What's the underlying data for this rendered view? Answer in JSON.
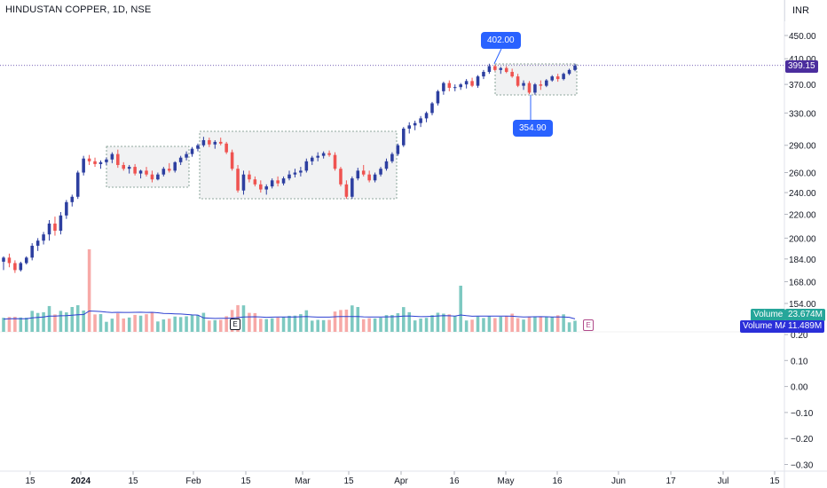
{
  "header": {
    "title": "HINDUSTAN COPPER, 1D, NSE",
    "currency": "INR"
  },
  "price_axis": {
    "ticks": [
      "450.00",
      "410.00",
      "370.00",
      "330.00",
      "290.00",
      "260.00",
      "240.00",
      "220.00",
      "200.00",
      "184.00",
      "168.00",
      "154.00"
    ],
    "last_price": "399.15"
  },
  "volume_axis": {
    "ticks": [
      "0.20",
      "0.10",
      "0.00",
      "−0.10",
      "−0.20",
      "−0.30"
    ]
  },
  "time_axis": {
    "ticks": [
      "15",
      "2024",
      "15",
      "Feb",
      "15",
      "Mar",
      "15",
      "Apr",
      "16",
      "May",
      "16",
      "Jun",
      "17",
      "Jul",
      "15"
    ]
  },
  "badges": {
    "volume_label": "Volume",
    "volume_value": "23.674M",
    "ma_label": "Volume MA",
    "ma_value": "11.489M"
  },
  "annotations": {
    "high": "402.00",
    "low": "354.90"
  },
  "events": {
    "earnings_1": "E",
    "earnings_2": "E"
  },
  "colors": {
    "up": "#26a69a",
    "up_fill": "#2d3fa0",
    "down": "#ef5350",
    "accent": "#2962ff",
    "ma": "#2c3fd1",
    "volume_badge": "#26a69a",
    "ma_badge": "#2b2fd9",
    "last_price_badge": "#4b2d9e"
  },
  "chart_data": {
    "type": "candlestick",
    "title": "",
    "price_scale": "log",
    "visible_price_range": [
      154,
      450
    ],
    "candles": [
      [
        182,
        186,
        176,
        185
      ],
      [
        185,
        188,
        178,
        181
      ],
      [
        181,
        183,
        174,
        176
      ],
      [
        176,
        182,
        175,
        181
      ],
      [
        181,
        186,
        180,
        185
      ],
      [
        185,
        196,
        183,
        194
      ],
      [
        194,
        200,
        190,
        198
      ],
      [
        198,
        205,
        195,
        203
      ],
      [
        203,
        215,
        198,
        212
      ],
      [
        212,
        218,
        202,
        206
      ],
      [
        206,
        222,
        203,
        219
      ],
      [
        219,
        233,
        216,
        231
      ],
      [
        231,
        238,
        227,
        236
      ],
      [
        236,
        262,
        234,
        260
      ],
      [
        260,
        278,
        257,
        275
      ],
      [
        275,
        279,
        268,
        272
      ],
      [
        272,
        276,
        266,
        269
      ],
      [
        269,
        273,
        264,
        271
      ],
      [
        271,
        276,
        268,
        274
      ],
      [
        274,
        282,
        270,
        280
      ],
      [
        280,
        285,
        265,
        268
      ],
      [
        268,
        271,
        262,
        264
      ],
      [
        264,
        268,
        259,
        266
      ],
      [
        266,
        269,
        257,
        259
      ],
      [
        259,
        263,
        254,
        262
      ],
      [
        262,
        266,
        256,
        258
      ],
      [
        258,
        262,
        250,
        253
      ],
      [
        253,
        260,
        252,
        258
      ],
      [
        258,
        266,
        256,
        264
      ],
      [
        264,
        270,
        260,
        262
      ],
      [
        262,
        272,
        260,
        271
      ],
      [
        271,
        278,
        268,
        276
      ],
      [
        276,
        283,
        273,
        280
      ],
      [
        280,
        288,
        277,
        286
      ],
      [
        286,
        292,
        283,
        290
      ],
      [
        290,
        300,
        288,
        296
      ],
      [
        296,
        299,
        288,
        291
      ],
      [
        291,
        296,
        286,
        294
      ],
      [
        294,
        299,
        290,
        292
      ],
      [
        292,
        294,
        280,
        282
      ],
      [
        282,
        285,
        262,
        264
      ],
      [
        264,
        268,
        240,
        242
      ],
      [
        242,
        262,
        238,
        258
      ],
      [
        258,
        262,
        250,
        253
      ],
      [
        253,
        256,
        246,
        248
      ],
      [
        248,
        252,
        240,
        243
      ],
      [
        243,
        248,
        238,
        246
      ],
      [
        246,
        254,
        244,
        252
      ],
      [
        252,
        256,
        246,
        249
      ],
      [
        249,
        256,
        247,
        254
      ],
      [
        254,
        262,
        252,
        258
      ],
      [
        258,
        264,
        255,
        260
      ],
      [
        260,
        266,
        256,
        262
      ],
      [
        262,
        275,
        260,
        272
      ],
      [
        272,
        278,
        268,
        276
      ],
      [
        276,
        282,
        272,
        278
      ],
      [
        278,
        283,
        275,
        281
      ],
      [
        281,
        284,
        277,
        279
      ],
      [
        279,
        282,
        262,
        264
      ],
      [
        264,
        266,
        246,
        248
      ],
      [
        248,
        252,
        234,
        236
      ],
      [
        236,
        256,
        234,
        254
      ],
      [
        254,
        265,
        252,
        262
      ],
      [
        262,
        268,
        256,
        258
      ],
      [
        258,
        262,
        250,
        252
      ],
      [
        252,
        260,
        250,
        258
      ],
      [
        258,
        266,
        256,
        264
      ],
      [
        264,
        275,
        262,
        272
      ],
      [
        272,
        282,
        270,
        280
      ],
      [
        280,
        292,
        278,
        290
      ],
      [
        290,
        312,
        288,
        310
      ],
      [
        310,
        318,
        304,
        314
      ],
      [
        314,
        320,
        308,
        317
      ],
      [
        317,
        326,
        312,
        323
      ],
      [
        323,
        332,
        318,
        330
      ],
      [
        330,
        345,
        327,
        343
      ],
      [
        343,
        362,
        340,
        360
      ],
      [
        360,
        374,
        355,
        372
      ],
      [
        372,
        376,
        360,
        365
      ],
      [
        365,
        370,
        360,
        366
      ],
      [
        366,
        372,
        362,
        370
      ],
      [
        370,
        378,
        364,
        375
      ],
      [
        375,
        380,
        366,
        368
      ],
      [
        368,
        384,
        365,
        382
      ],
      [
        382,
        392,
        378,
        389
      ],
      [
        389,
        402,
        386,
        398
      ],
      [
        398,
        400,
        390,
        392
      ],
      [
        392,
        397,
        386,
        395
      ],
      [
        395,
        398,
        387,
        389
      ],
      [
        389,
        394,
        380,
        382
      ],
      [
        382,
        386,
        366,
        368
      ],
      [
        368,
        376,
        362,
        372
      ],
      [
        372,
        375,
        356,
        358
      ],
      [
        358,
        372,
        355,
        370
      ],
      [
        370,
        376,
        362,
        368
      ],
      [
        368,
        378,
        366,
        376
      ],
      [
        376,
        384,
        374,
        382
      ],
      [
        382,
        386,
        374,
        378
      ],
      [
        378,
        388,
        376,
        386
      ],
      [
        386,
        394,
        384,
        392
      ],
      [
        392,
        402,
        390,
        399
      ]
    ],
    "volume_ma_shape": "slowly varying around 11.5M",
    "volume_last": "23.674M",
    "volume_ma_last": "11.489M"
  }
}
